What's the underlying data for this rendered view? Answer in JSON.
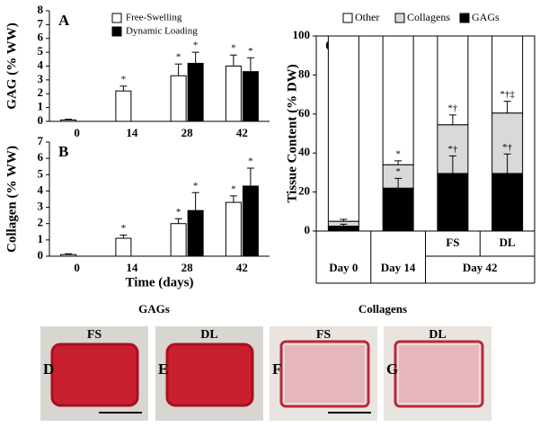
{
  "chart_data": [
    {
      "type": "bar",
      "panel": "A",
      "ylabel": "GAG (% WW)",
      "categories": [
        "0",
        "14",
        "28",
        "42"
      ],
      "series": [
        {
          "name": "Free-Swelling",
          "color": "#ffffff",
          "values": [
            0.1,
            2.2,
            3.3,
            4.0
          ],
          "errors": [
            0.05,
            0.35,
            0.85,
            0.8
          ],
          "significance": [
            null,
            "*",
            "*",
            "*"
          ]
        },
        {
          "name": "Dynamic Loading",
          "color": "#000000",
          "values": [
            null,
            null,
            4.2,
            3.6
          ],
          "errors": [
            null,
            null,
            0.8,
            1.0
          ],
          "significance": [
            null,
            null,
            "*",
            "*"
          ]
        }
      ],
      "ylim": [
        0,
        8
      ],
      "yticks": [
        0,
        1,
        2,
        3,
        4,
        5,
        6,
        7,
        8
      ],
      "grid": false
    },
    {
      "type": "bar",
      "panel": "B",
      "ylabel": "Collagen (% WW)",
      "xlabel": "Time (days)",
      "categories": [
        "0",
        "14",
        "28",
        "42"
      ],
      "series": [
        {
          "name": "Free-Swelling",
          "color": "#ffffff",
          "values": [
            0.1,
            1.1,
            2.0,
            3.3
          ],
          "errors": [
            0.05,
            0.2,
            0.3,
            0.4
          ],
          "significance": [
            null,
            "*",
            "*",
            "*"
          ]
        },
        {
          "name": "Dynamic Loading",
          "color": "#000000",
          "values": [
            null,
            null,
            2.8,
            4.3
          ],
          "errors": [
            null,
            null,
            1.1,
            1.1
          ],
          "significance": [
            null,
            null,
            "*",
            "*"
          ]
        }
      ],
      "ylim": [
        0,
        7
      ],
      "yticks": [
        0,
        1,
        2,
        3,
        4,
        5,
        6,
        7
      ],
      "grid": false,
      "legend": false
    },
    {
      "type": "stacked_bar",
      "panel": "C",
      "ylabel": "Tissue Content (% DW)",
      "categories": [
        "Day 0",
        "Day 14",
        "FS",
        "DL"
      ],
      "groups": [
        {
          "label": "Day 42",
          "members": [
            2,
            3
          ]
        }
      ],
      "series": [
        {
          "name": "Other",
          "color": "#ffffff",
          "values": [
            95,
            66,
            45.5,
            39.5
          ],
          "errors": [
            null,
            null,
            null,
            null
          ],
          "significance": [
            null,
            null,
            null,
            null
          ]
        },
        {
          "name": "Collagens",
          "color": "#d9d9d9",
          "values": [
            2.5,
            12,
            25,
            31
          ],
          "errors": [
            1,
            2,
            5,
            6
          ],
          "significance": [
            null,
            "*",
            "*†",
            "*†‡"
          ]
        },
        {
          "name": "GAGs",
          "color": "#000000",
          "values": [
            2.5,
            22,
            29.5,
            29.5
          ],
          "errors": [
            1,
            5,
            9,
            10
          ],
          "significance": [
            null,
            "*",
            "*†",
            "*†"
          ]
        }
      ],
      "ylim": [
        0,
        100
      ],
      "yticks": [
        0,
        20,
        40,
        60,
        80,
        100
      ],
      "grid": false
    }
  ],
  "images": [
    {
      "title": "GAGs",
      "panels": [
        {
          "letter": "D",
          "label": "FS"
        },
        {
          "letter": "E",
          "label": "DL"
        }
      ]
    },
    {
      "title": "Collagens",
      "panels": [
        {
          "letter": "F",
          "label": "FS"
        },
        {
          "letter": "G",
          "label": "DL"
        }
      ]
    }
  ]
}
